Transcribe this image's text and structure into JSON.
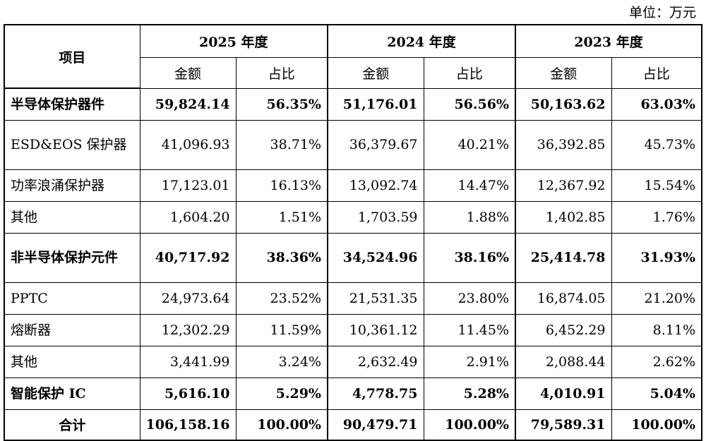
{
  "unit_label": "单位：万元",
  "header": {
    "item_label": "项目",
    "years": [
      "2025 年度",
      "2024 年度",
      "2023 年度"
    ],
    "amount_label": "金额",
    "ratio_label": "占比"
  },
  "rows": [
    {
      "label": "半导体保护器件",
      "bold": true,
      "values": [
        "59,824.14",
        "56.35%",
        "51,176.01",
        "56.56%",
        "50,163.62",
        "63.03%"
      ]
    },
    {
      "label": "ESD&EOS 保护器",
      "bold": false,
      "values": [
        "41,096.93",
        "38.71%",
        "36,379.67",
        "40.21%",
        "36,392.85",
        "45.73%"
      ]
    },
    {
      "label": "功率浪涌保护器",
      "bold": false,
      "values": [
        "17,123.01",
        "16.13%",
        "13,092.74",
        "14.47%",
        "12,367.92",
        "15.54%"
      ]
    },
    {
      "label": "其他",
      "bold": false,
      "values": [
        "1,604.20",
        "1.51%",
        "1,703.59",
        "1.88%",
        "1,402.85",
        "1.76%"
      ]
    },
    {
      "label": "非半导体保护元件",
      "bold": true,
      "values": [
        "40,717.92",
        "38.36%",
        "34,524.96",
        "38.16%",
        "25,414.78",
        "31.93%"
      ]
    },
    {
      "label": "PPTC",
      "bold": false,
      "values": [
        "24,973.64",
        "23.52%",
        "21,531.35",
        "23.80%",
        "16,874.05",
        "21.20%"
      ]
    },
    {
      "label": "熔断器",
      "bold": false,
      "values": [
        "12,302.29",
        "11.59%",
        "10,361.12",
        "11.45%",
        "6,452.29",
        "8.11%"
      ]
    },
    {
      "label": "其他",
      "bold": false,
      "values": [
        "3,441.99",
        "3.24%",
        "2,632.49",
        "2.91%",
        "2,088.44",
        "2.62%"
      ]
    },
    {
      "label": "智能保护 IC",
      "bold": true,
      "values": [
        "5,616.10",
        "5.29%",
        "4,778.75",
        "5.28%",
        "4,010.91",
        "5.04%"
      ]
    }
  ],
  "total": {
    "label": "合计",
    "values": [
      "106,158.16",
      "100.00%",
      "90,479.71",
      "100.00%",
      "79,589.31",
      "100.00%"
    ]
  }
}
